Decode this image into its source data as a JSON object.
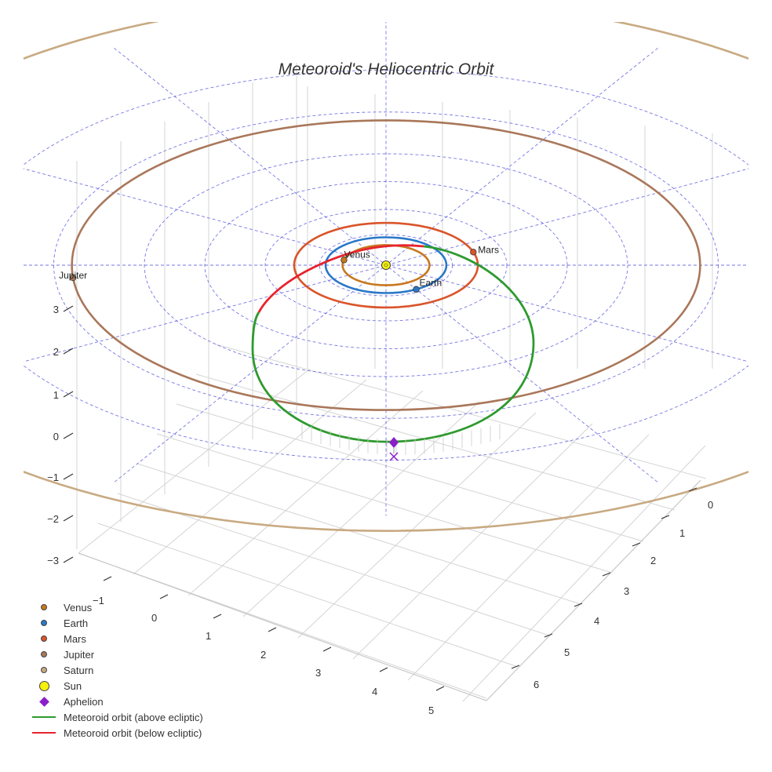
{
  "chart_data": {
    "type": "scatter",
    "title": "Meteoroid's Heliocentric Orbit",
    "axes": {
      "x_ticks": [
        "0",
        "1",
        "2",
        "3",
        "4",
        "5",
        "6"
      ],
      "y_ticks": [
        "−1",
        "0",
        "1",
        "2",
        "3",
        "4",
        "5"
      ],
      "z_ticks": [
        "−3",
        "−2",
        "−1",
        "0",
        "1",
        "2",
        "3"
      ]
    },
    "planets": [
      {
        "name": "Venus",
        "a_au": 0.72,
        "color": "#c8781e",
        "labeled": true
      },
      {
        "name": "Earth",
        "a_au": 1.0,
        "color": "#2a78c8",
        "labeled": true
      },
      {
        "name": "Mars",
        "a_au": 1.52,
        "color": "#d9552a",
        "labeled": true
      },
      {
        "name": "Jupiter",
        "a_au": 5.2,
        "color": "#a9775a",
        "labeled": true
      },
      {
        "name": "Saturn",
        "a_au": 9.54,
        "color": "#c8aa82",
        "labeled": false
      }
    ],
    "sun": {
      "name": "Sun",
      "color": "#f7f20a"
    },
    "aphelion": {
      "name": "Aphelion",
      "color": "#8a1ec8",
      "distance_au": 3.0
    },
    "meteoroid": {
      "perihelion_au": 1.0,
      "aphelion_au": 3.0,
      "above_color": "#2e9a2e",
      "below_color": "#e8232d"
    },
    "ecliptic_grid_color": "#5555dd",
    "legend": [
      {
        "label": "Venus",
        "symbol": "dot",
        "color": "#c8781e"
      },
      {
        "label": "Earth",
        "symbol": "dot",
        "color": "#2a78c8"
      },
      {
        "label": "Mars",
        "symbol": "dot",
        "color": "#d9552a"
      },
      {
        "label": "Jupiter",
        "symbol": "dot",
        "color": "#a9775a"
      },
      {
        "label": "Saturn",
        "symbol": "dot",
        "color": "#c8aa82"
      },
      {
        "label": "Sun",
        "symbol": "dot-big",
        "color": "#f7f20a"
      },
      {
        "label": "Aphelion",
        "symbol": "diamond",
        "color": "#8a1ec8"
      },
      {
        "label": "Meteoroid orbit (above ecliptic)",
        "symbol": "line",
        "color": "#2e9a2e"
      },
      {
        "label": "Meteoroid orbit (below ecliptic)",
        "symbol": "line",
        "color": "#e8232d"
      }
    ]
  }
}
